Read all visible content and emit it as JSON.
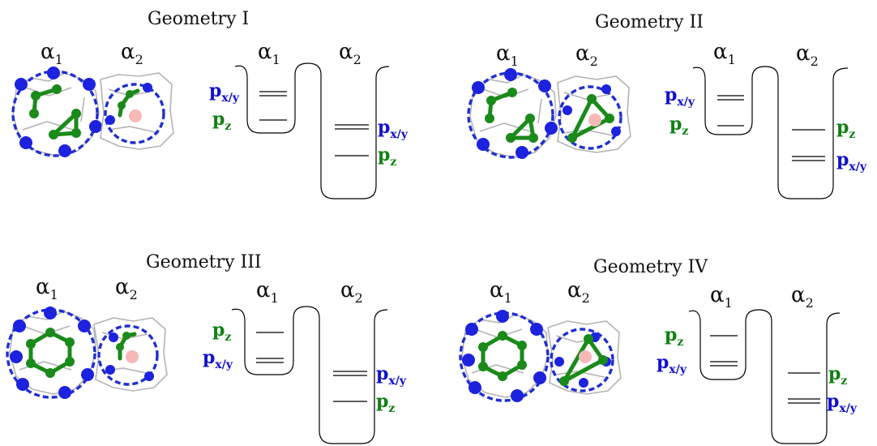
{
  "colors": {
    "px_label": "#1010cc",
    "pz_label": "#108010",
    "ring": "#1f2fd0",
    "green_atoms": "#1a8a1a",
    "blue_atoms": "#1c22dd",
    "center_atom": "#f7b8b8",
    "framework": "#b4b4b4"
  },
  "panels": [
    {
      "title": "Geometry I",
      "cage_labels": [
        {
          "base": "α",
          "sub": "1"
        },
        {
          "base": "α",
          "sub": "2"
        }
      ],
      "well_labels": [
        {
          "base": "α",
          "sub": "1"
        },
        {
          "base": "α",
          "sub": "2"
        }
      ],
      "level_labels": [
        {
          "base": "p",
          "sub": "x/y",
          "kind": "px"
        },
        {
          "base": "p",
          "sub": "z",
          "kind": "pz"
        },
        {
          "base": "p",
          "sub": "x/y",
          "kind": "px"
        },
        {
          "base": "p",
          "sub": "z",
          "kind": "pz"
        }
      ]
    },
    {
      "title": "Geometry II",
      "cage_labels": [
        {
          "base": "α",
          "sub": "1"
        },
        {
          "base": "α",
          "sub": "2"
        }
      ],
      "well_labels": [
        {
          "base": "α",
          "sub": "1"
        },
        {
          "base": "α",
          "sub": "2"
        }
      ],
      "level_labels": [
        {
          "base": "p",
          "sub": "x/y",
          "kind": "px"
        },
        {
          "base": "p",
          "sub": "z",
          "kind": "pz"
        },
        {
          "base": "p",
          "sub": "z",
          "kind": "pz"
        },
        {
          "base": "p",
          "sub": "x/y",
          "kind": "px"
        }
      ]
    },
    {
      "title": "Geometry III",
      "cage_labels": [
        {
          "base": "α",
          "sub": "1"
        },
        {
          "base": "α",
          "sub": "2"
        }
      ],
      "well_labels": [
        {
          "base": "α",
          "sub": "1"
        },
        {
          "base": "α",
          "sub": "2"
        }
      ],
      "level_labels": [
        {
          "base": "p",
          "sub": "z",
          "kind": "pz"
        },
        {
          "base": "p",
          "sub": "x/y",
          "kind": "px"
        },
        {
          "base": "p",
          "sub": "x/y",
          "kind": "px"
        },
        {
          "base": "p",
          "sub": "z",
          "kind": "pz"
        }
      ]
    },
    {
      "title": "Geometry IV",
      "cage_labels": [
        {
          "base": "α",
          "sub": "1"
        },
        {
          "base": "α",
          "sub": "2"
        }
      ],
      "well_labels": [
        {
          "base": "α",
          "sub": "1"
        },
        {
          "base": "α",
          "sub": "2"
        }
      ],
      "level_labels": [
        {
          "base": "p",
          "sub": "z",
          "kind": "pz"
        },
        {
          "base": "p",
          "sub": "x/y",
          "kind": "px"
        },
        {
          "base": "p",
          "sub": "z",
          "kind": "pz"
        },
        {
          "base": "p",
          "sub": "x/y",
          "kind": "px"
        }
      ]
    }
  ]
}
